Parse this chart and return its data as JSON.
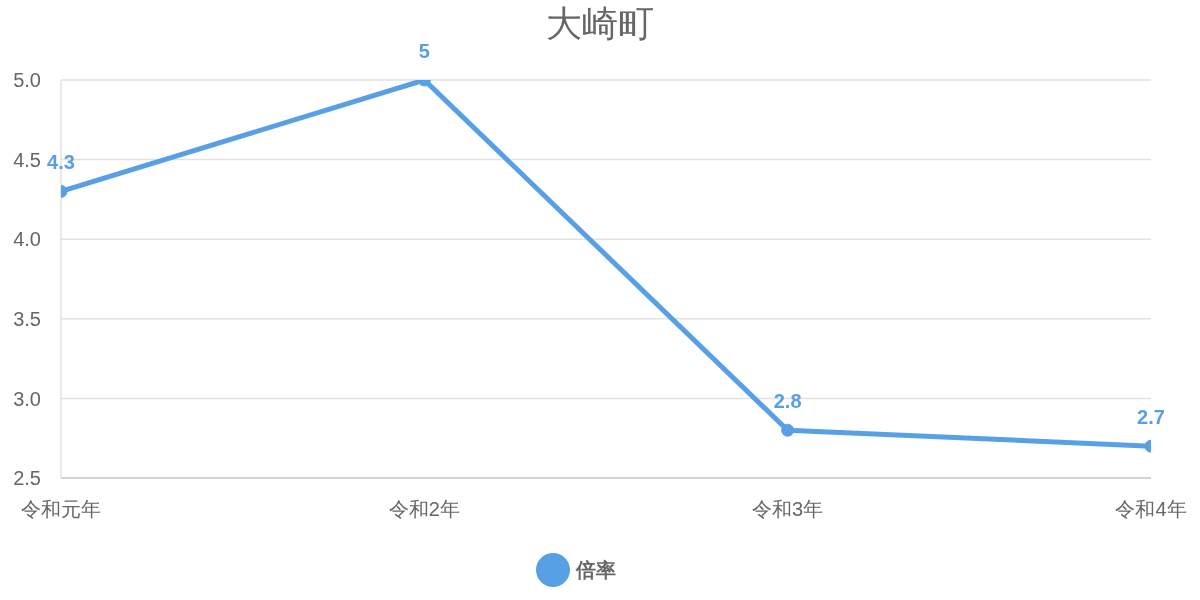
{
  "chart_data": {
    "type": "line",
    "title": "大崎町",
    "categories": [
      "令和元年",
      "令和2年",
      "令和3年",
      "令和4年"
    ],
    "series": [
      {
        "name": "倍率",
        "color": "#58a0e6",
        "values": [
          4.3,
          5,
          2.8,
          2.7
        ]
      }
    ],
    "ylim": [
      2.5,
      5.0
    ],
    "yticks": [
      {
        "value": 2.5,
        "label": "2.5"
      },
      {
        "value": 3.0,
        "label": "3.0"
      },
      {
        "value": 3.5,
        "label": "3.5"
      },
      {
        "value": 4.0,
        "label": "4.0"
      },
      {
        "value": 4.5,
        "label": "4.5"
      },
      {
        "value": 5.0,
        "label": "5.0"
      }
    ],
    "grid": "y",
    "legend": "bottom",
    "marker": "circle",
    "line_style": "solid",
    "data_labels": true
  }
}
